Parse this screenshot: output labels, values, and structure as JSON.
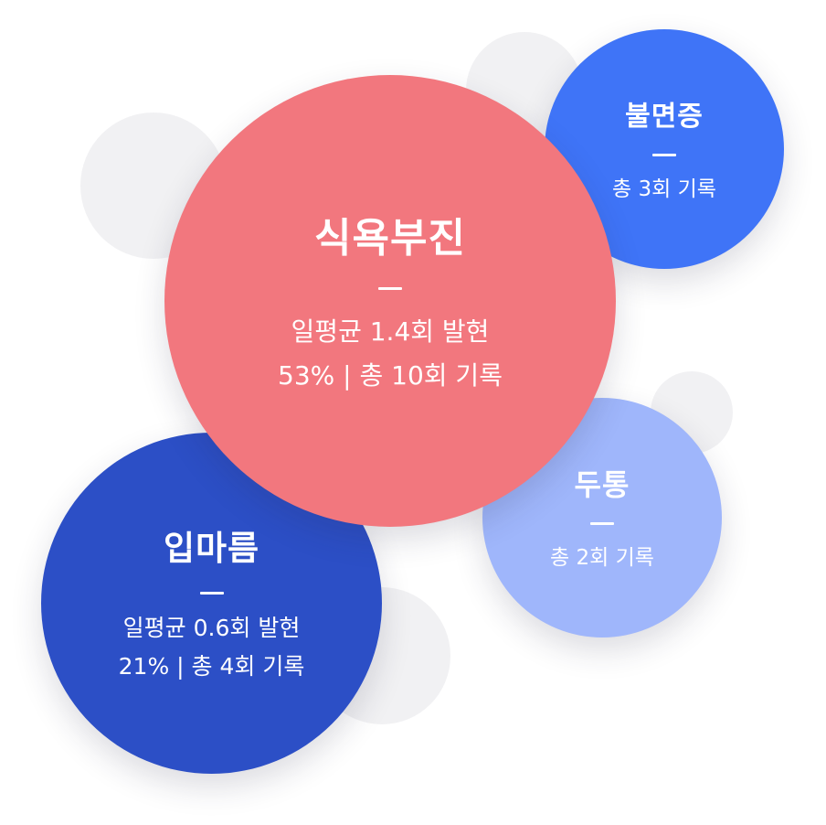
{
  "bubbles": {
    "anorexia": {
      "title": "식욕부진",
      "line1": "일평균 1.4회 발현",
      "line2": "53% | 총 10회 기록",
      "color": "#f2777e"
    },
    "insomnia": {
      "title": "불면증",
      "line1": "총 3회 기록",
      "color": "#3f74f7"
    },
    "headache": {
      "title": "두통",
      "line1": "총 2회 기록",
      "color": "#9fb6fb"
    },
    "dry_mouth": {
      "title": "입마름",
      "line1": "일평균 0.6회 발현",
      "line2": "21% | 총 4회 기록",
      "color": "#2c4fc6"
    }
  }
}
